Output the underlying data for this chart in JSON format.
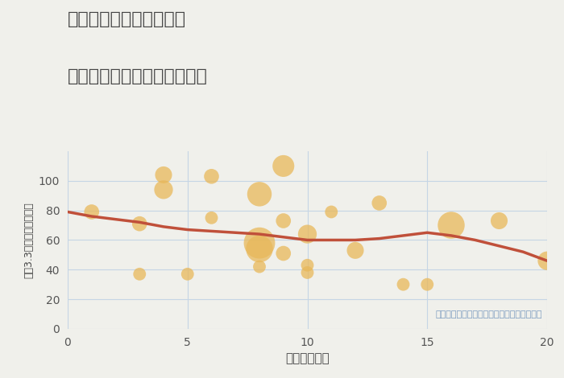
{
  "title_line1": "三重県四日市市桜新町の",
  "title_line2": "駅距離別中古マンション価格",
  "xlabel": "駅距離（分）",
  "ylabel": "坪（3.3㎡）単価（万円）",
  "annotation": "円の大きさは、取引のあった物件面積を示す",
  "background_color": "#f0f0eb",
  "bubble_color": "#e8b85a",
  "bubble_alpha": 0.75,
  "line_color": "#c0503a",
  "line_width": 2.5,
  "xlim": [
    0,
    20
  ],
  "ylim": [
    0,
    120
  ],
  "yticks": [
    0,
    20,
    40,
    60,
    80,
    100
  ],
  "xticks": [
    0,
    5,
    10,
    15,
    20
  ],
  "scatter_x": [
    1,
    3,
    3,
    4,
    4,
    5,
    6,
    6,
    8,
    8,
    8,
    8,
    9,
    9,
    9,
    10,
    10,
    10,
    11,
    12,
    13,
    14,
    15,
    16,
    18,
    20
  ],
  "scatter_y": [
    79,
    71,
    37,
    94,
    104,
    37,
    103,
    75,
    91,
    58,
    54,
    42,
    110,
    73,
    51,
    64,
    43,
    38,
    79,
    53,
    85,
    30,
    30,
    70,
    73,
    46
  ],
  "scatter_size": [
    180,
    180,
    130,
    280,
    230,
    130,
    180,
    130,
    480,
    780,
    580,
    130,
    380,
    180,
    180,
    280,
    130,
    130,
    130,
    230,
    180,
    130,
    130,
    580,
    230,
    280
  ],
  "line_x": [
    0,
    1,
    2,
    3,
    4,
    5,
    6,
    7,
    8,
    9,
    10,
    11,
    12,
    13,
    14,
    15,
    16,
    17,
    18,
    19,
    20
  ],
  "line_y": [
    79,
    76,
    74,
    72,
    69,
    67,
    66,
    65,
    64,
    62,
    60,
    60,
    60,
    61,
    63,
    65,
    63,
    60,
    56,
    52,
    46
  ]
}
